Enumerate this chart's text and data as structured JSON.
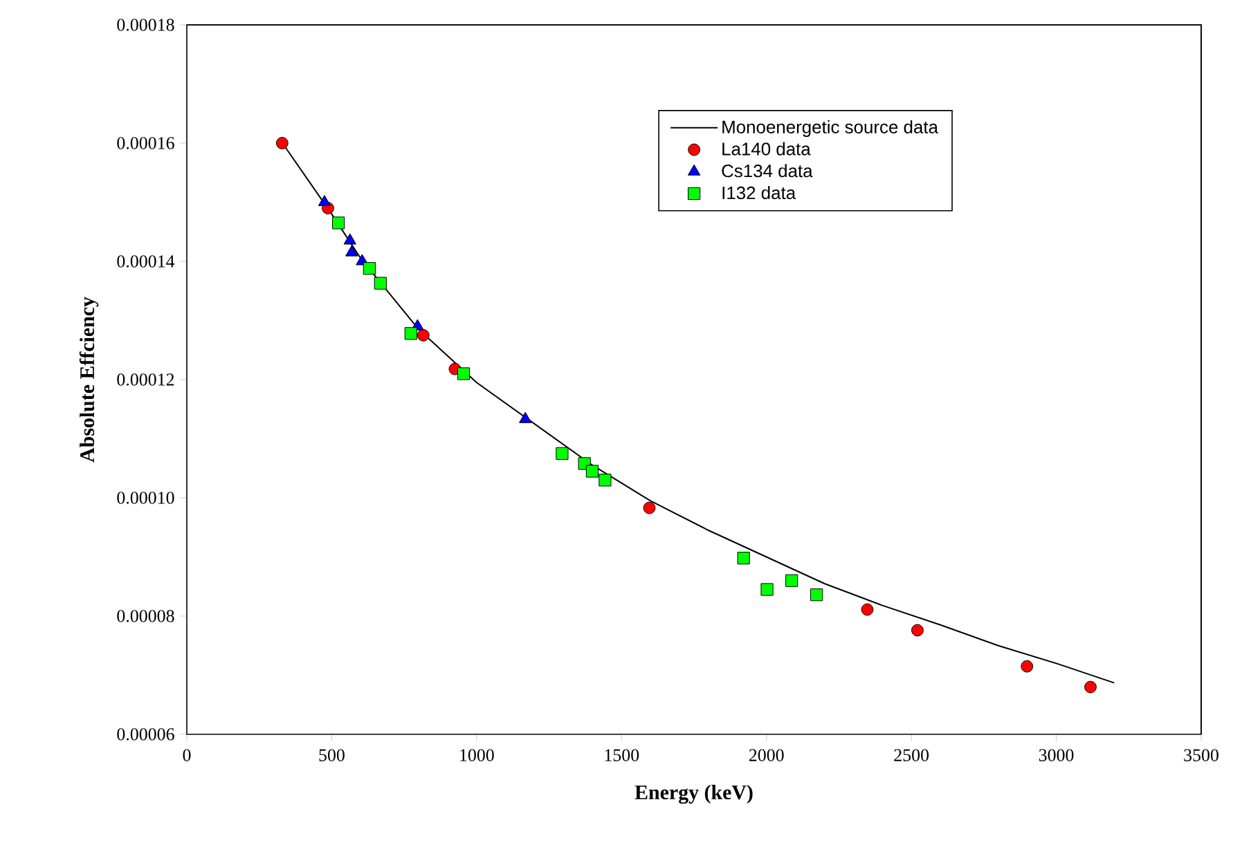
{
  "chart_data": {
    "type": "scatter",
    "xlabel": "Energy (keV)",
    "ylabel": "Absolute Effciency",
    "xlim": [
      0,
      3500
    ],
    "xticks": [
      0,
      500,
      1000,
      1500,
      2000,
      2500,
      3000,
      3500
    ],
    "ylim": [
      6e-05,
      0.00018
    ],
    "yticks": [
      {
        "value": 6e-05,
        "label": "0.00006"
      },
      {
        "value": 8e-05,
        "label": "0.00008"
      },
      {
        "value": 0.0001,
        "label": "0.00010"
      },
      {
        "value": 0.00012,
        "label": "0.00012"
      },
      {
        "value": 0.00014,
        "label": "0.00014"
      },
      {
        "value": 0.00016,
        "label": "0.00016"
      },
      {
        "value": 0.00018,
        "label": "0.00018"
      }
    ],
    "grid": false,
    "legend": "top right",
    "series": [
      {
        "name": "Monoenergetic source data",
        "type": "line",
        "marker": "none",
        "line_style": "solid",
        "color": "#000000",
        "x": [
          330,
          500,
          600,
          800,
          1000,
          1200,
          1400,
          1600,
          1800,
          2000,
          2200,
          2400,
          2600,
          2800,
          3000,
          3200
        ],
        "values": [
          0.00016,
          0.000148,
          0.0001405,
          0.0001285,
          0.0001195,
          0.0001125,
          0.0001055,
          9.95e-05,
          9.45e-05,
          9e-05,
          8.55e-05,
          8.18e-05,
          7.85e-05,
          7.5e-05,
          7.2e-05,
          6.87e-05
        ]
      },
      {
        "name": "La140 data",
        "marker": "circle",
        "color": "#ff0000",
        "x": [
          329,
          487,
          816,
          925,
          1596,
          2348,
          2521,
          2899,
          3118
        ],
        "values": [
          0.00016,
          0.000149,
          0.0001275,
          0.0001218,
          9.83e-05,
          8.11e-05,
          7.76e-05,
          7.15e-05,
          6.8e-05
        ]
      },
      {
        "name": "Cs134 data",
        "marker": "triangle",
        "color": "#0000ff",
        "x": [
          475,
          563,
          569,
          605,
          796,
          1168
        ],
        "values": [
          0.00015,
          0.0001435,
          0.0001415,
          0.00014,
          0.000129,
          0.0001133
        ]
      },
      {
        "name": "I132 data",
        "marker": "square",
        "color": "#00ff00",
        "x": [
          523,
          630,
          668,
          773,
          955,
          1295,
          1372,
          1399,
          1443,
          1921,
          2002,
          2087,
          2173
        ],
        "values": [
          0.0001465,
          0.0001388,
          0.0001363,
          0.0001278,
          0.000121,
          0.0001075,
          0.0001058,
          0.0001045,
          0.000103,
          8.98e-05,
          8.45e-05,
          8.6e-05,
          8.36e-05
        ]
      }
    ]
  }
}
